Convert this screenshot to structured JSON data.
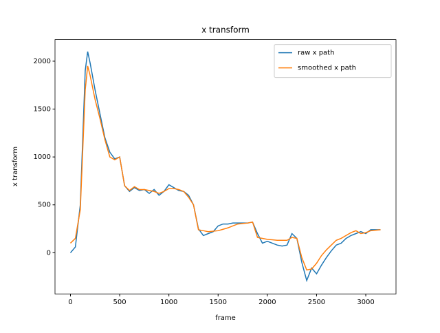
{
  "chart_data": {
    "type": "line",
    "title": "x transform",
    "x_label": "frame",
    "y_label": "x transform",
    "x": [
      0,
      50,
      100,
      150,
      175,
      200,
      250,
      300,
      350,
      400,
      450,
      500,
      550,
      600,
      650,
      700,
      750,
      800,
      850,
      900,
      950,
      1000,
      1050,
      1100,
      1150,
      1200,
      1250,
      1300,
      1350,
      1400,
      1450,
      1500,
      1550,
      1600,
      1650,
      1700,
      1750,
      1800,
      1850,
      1900,
      1950,
      2000,
      2050,
      2100,
      2150,
      2200,
      2250,
      2300,
      2350,
      2400,
      2450,
      2500,
      2550,
      2600,
      2650,
      2700,
      2750,
      2800,
      2850,
      2900,
      2950,
      3000,
      3050,
      3100,
      3150
    ],
    "series": [
      {
        "name": "raw x path",
        "color": "#1f77b4",
        "values": [
          0,
          60,
          500,
          1900,
          2100,
          1980,
          1700,
          1450,
          1200,
          1050,
          980,
          1000,
          700,
          640,
          680,
          650,
          660,
          620,
          660,
          600,
          640,
          710,
          680,
          650,
          640,
          600,
          500,
          250,
          180,
          200,
          220,
          280,
          300,
          300,
          310,
          310,
          310,
          310,
          320,
          200,
          100,
          120,
          100,
          80,
          70,
          80,
          200,
          150,
          -100,
          -290,
          -160,
          -220,
          -130,
          -50,
          20,
          80,
          100,
          150,
          180,
          200,
          220,
          200,
          240,
          240,
          240
        ]
      },
      {
        "name": "smoothed x path",
        "color": "#ff7f0e",
        "values": [
          100,
          150,
          450,
          1700,
          1950,
          1850,
          1600,
          1400,
          1180,
          1000,
          970,
          1000,
          700,
          650,
          690,
          660,
          660,
          650,
          640,
          620,
          640,
          670,
          670,
          660,
          640,
          580,
          500,
          240,
          230,
          220,
          225,
          230,
          245,
          260,
          280,
          300,
          305,
          310,
          320,
          160,
          150,
          140,
          135,
          130,
          130,
          130,
          160,
          150,
          -50,
          -180,
          -170,
          -110,
          -30,
          30,
          80,
          130,
          150,
          180,
          210,
          230,
          200,
          210,
          230,
          235,
          240
        ]
      }
    ],
    "xlim": [
      -157,
      3307
    ],
    "ylim": [
      -430,
      2225
    ],
    "xticks": [
      0,
      500,
      1000,
      1500,
      2000,
      2500,
      3000
    ],
    "yticks": [
      0,
      500,
      1000,
      1500,
      2000
    ],
    "grid": false,
    "legend": "upper right"
  }
}
